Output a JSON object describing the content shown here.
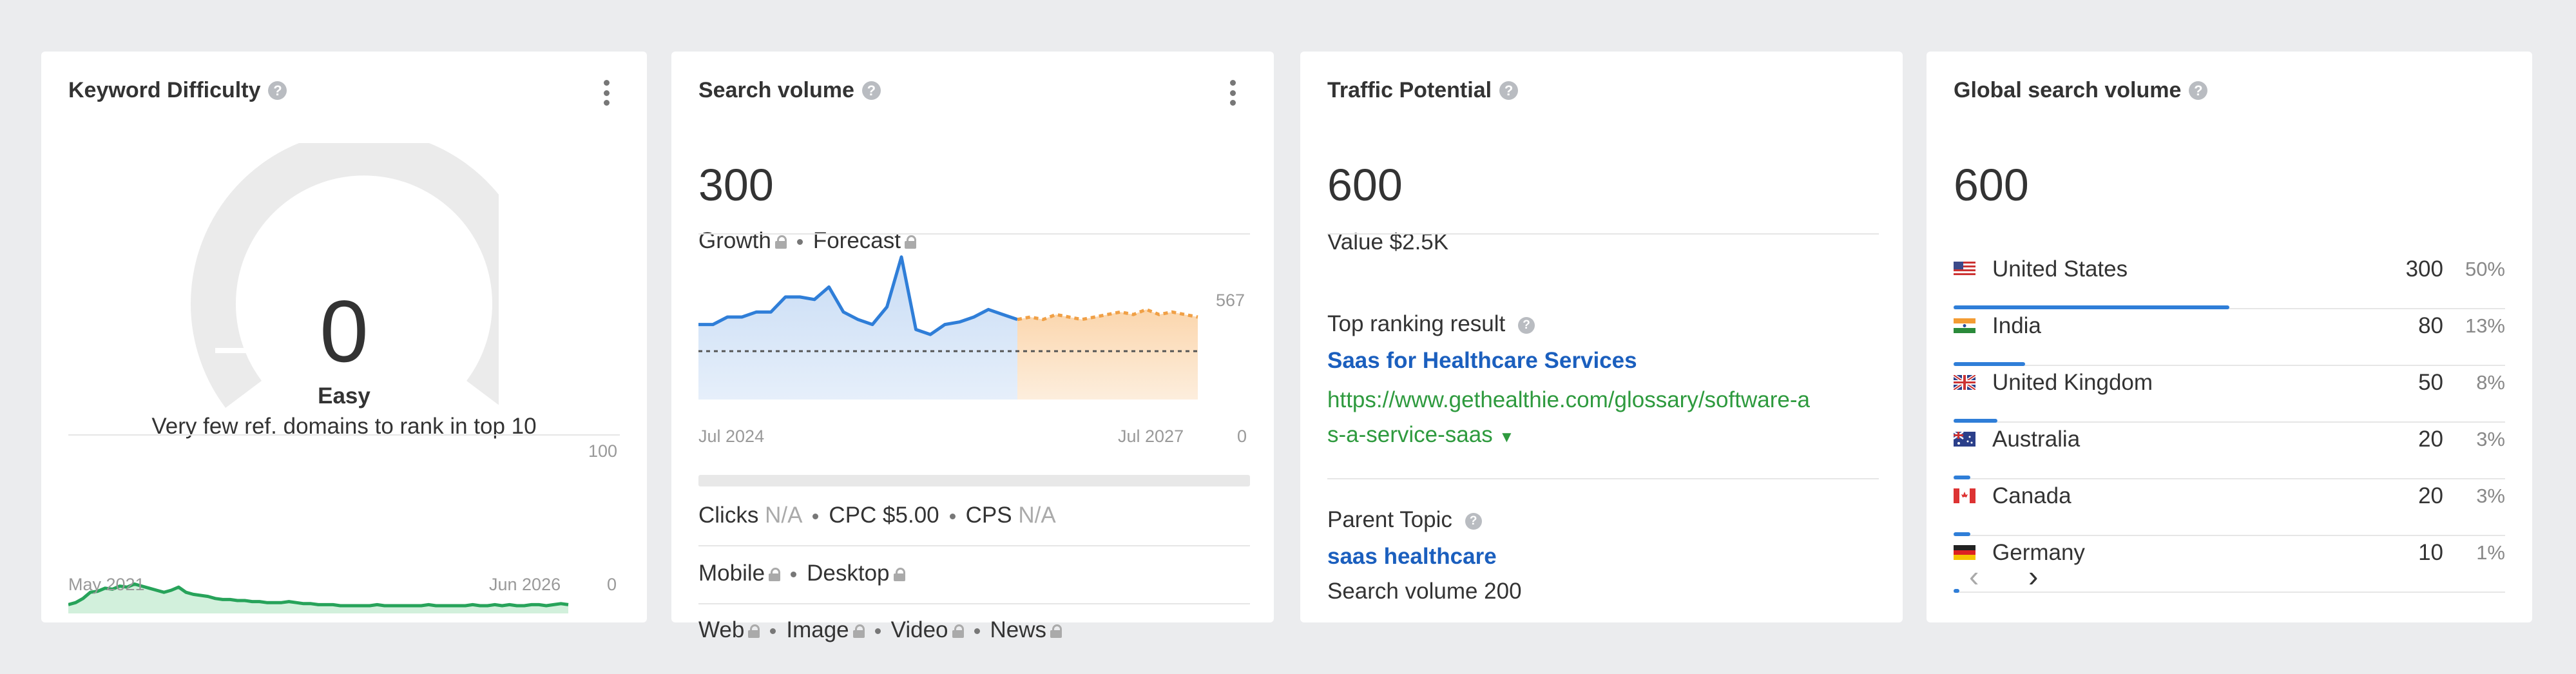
{
  "keyword_difficulty": {
    "title": "Keyword Difficulty",
    "score": "0",
    "level": "Easy",
    "description": "Very few ref. domains to rank in top 10",
    "chart_max_label": "100",
    "chart_min_label": "0",
    "start_label": "May 2021",
    "end_label": "Jun 2026"
  },
  "search_volume": {
    "title": "Search volume",
    "value": "300",
    "growth_label": "Growth",
    "forecast_label": "Forecast",
    "chart_max_label": "567",
    "chart_min_label": "0",
    "start_label": "Jul 2024",
    "end_label": "Jul 2027",
    "clicks_label": "Clicks",
    "clicks_value": "N/A",
    "cpc_label": "CPC $5.00",
    "cps_label": "CPS",
    "cps_value": "N/A",
    "mobile_label": "Mobile",
    "desktop_label": "Desktop",
    "web_label": "Web",
    "image_label": "Image",
    "video_label": "Video",
    "news_label": "News"
  },
  "traffic_potential": {
    "title": "Traffic Potential",
    "value": "600",
    "value_text": "Value $2.5K",
    "top_result_label": "Top ranking result",
    "top_result_title": "Saas for Healthcare Services",
    "top_result_url_line1": "https://www.gethealthie.com/glossary/software-a",
    "top_result_url_line2": "s-a-service-saas",
    "parent_topic_label": "Parent Topic",
    "parent_topic": "saas healthcare",
    "parent_volume": "Search volume 200"
  },
  "global_volume": {
    "title": "Global search volume",
    "value": "600",
    "countries": [
      {
        "name": "United States",
        "volume": "300",
        "pct": "50%",
        "share": 0.5,
        "flag": "us-flag"
      },
      {
        "name": "India",
        "volume": "80",
        "pct": "13%",
        "share": 0.13,
        "flag": "in-flag"
      },
      {
        "name": "United Kingdom",
        "volume": "50",
        "pct": "8%",
        "share": 0.08,
        "flag": "uk-flag"
      },
      {
        "name": "Australia",
        "volume": "20",
        "pct": "3%",
        "share": 0.03,
        "flag": "au-flag"
      },
      {
        "name": "Canada",
        "volume": "20",
        "pct": "3%",
        "share": 0.03,
        "flag": "ca-flag"
      },
      {
        "name": "Germany",
        "volume": "10",
        "pct": "1%",
        "share": 0.01,
        "flag": "de-flag"
      }
    ],
    "prev_icon": "chevron-left-icon",
    "next_icon": "chevron-right-icon"
  },
  "colors": {
    "accent_blue": "#2f7ed8",
    "link_blue": "#1b5fbe",
    "url_green": "#2e9a3e",
    "kd_green": "#27a35a",
    "forecast_orange": "#f0a046"
  }
}
